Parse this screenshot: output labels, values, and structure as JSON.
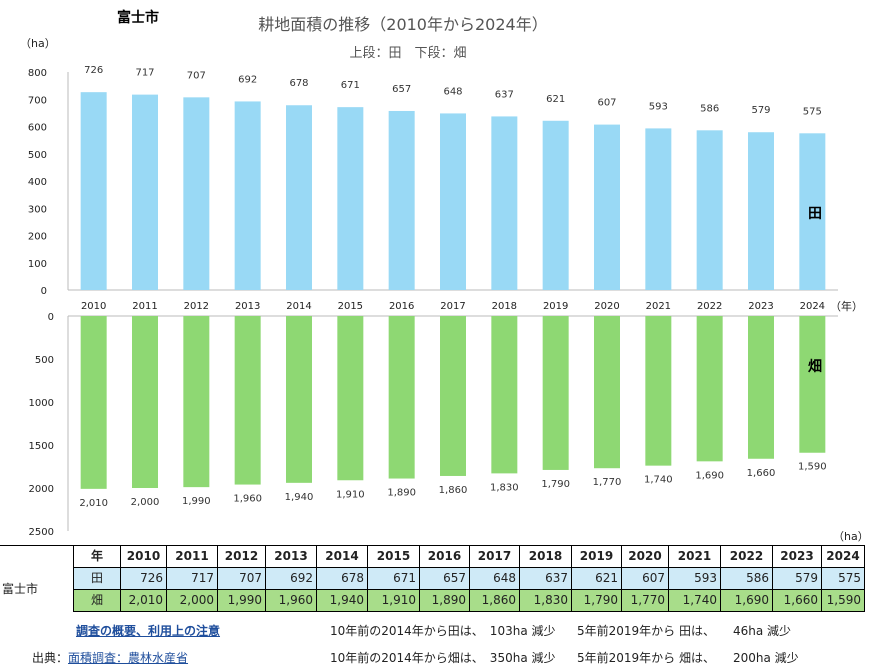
{
  "city": "富士市",
  "chart_data": {
    "type": "bar",
    "title": "耕地面積の推移（2010年から2024年）",
    "subtitle": "上段：田　下段：畑",
    "ylabel_top": "（ha）",
    "unit_bottom": "（ha）",
    "x_unit": "（年）",
    "categories": [
      "2010",
      "2011",
      "2012",
      "2013",
      "2014",
      "2015",
      "2016",
      "2017",
      "2018",
      "2019",
      "2020",
      "2021",
      "2022",
      "2023",
      "2024"
    ],
    "series": [
      {
        "name": "田",
        "color": "#99d9f5",
        "ylim": [
          0,
          800
        ],
        "ticks": [
          0,
          100,
          200,
          300,
          400,
          500,
          600,
          700,
          800
        ],
        "values": [
          726,
          717,
          707,
          692,
          678,
          671,
          657,
          648,
          637,
          621,
          607,
          593,
          586,
          579,
          575
        ],
        "labels": [
          "726",
          "717",
          "707",
          "692",
          "678",
          "671",
          "657",
          "648",
          "637",
          "621",
          "607",
          "593",
          "586",
          "579",
          "575"
        ]
      },
      {
        "name": "畑",
        "color": "#8ed873",
        "ylim": [
          0,
          2500
        ],
        "ticks": [
          0,
          500,
          1000,
          1500,
          2000,
          2500
        ],
        "inverted": true,
        "values": [
          2010,
          2000,
          1990,
          1960,
          1940,
          1910,
          1890,
          1860,
          1830,
          1790,
          1770,
          1740,
          1690,
          1660,
          1590
        ],
        "labels": [
          "2,010",
          "2,000",
          "1,990",
          "1,960",
          "1,940",
          "1,910",
          "1,890",
          "1,860",
          "1,830",
          "1,790",
          "1,770",
          "1,740",
          "1,690",
          "1,660",
          "1,590"
        ]
      }
    ]
  },
  "table": {
    "row_label": "富士市",
    "year_header": "年",
    "paddy_label": "田",
    "field_label": "畑",
    "years": [
      "2010",
      "2011",
      "2012",
      "2013",
      "2014",
      "2015",
      "2016",
      "2017",
      "2018",
      "2019",
      "2020",
      "2021",
      "2022",
      "2023",
      "2024"
    ],
    "paddy": [
      "726",
      "717",
      "707",
      "692",
      "678",
      "671",
      "657",
      "648",
      "637",
      "621",
      "607",
      "593",
      "586",
      "579",
      "575"
    ],
    "field": [
      "2,010",
      "2,000",
      "1,990",
      "1,960",
      "1,940",
      "1,910",
      "1,890",
      "1,860",
      "1,830",
      "1,790",
      "1,770",
      "1,740",
      "1,690",
      "1,660",
      "1,590"
    ]
  },
  "notes": {
    "overview_link": "調査の概要、利用上の注意",
    "source_prefix": "出典：",
    "source_link": "面積調査：農林水産省",
    "paddy_10y": "10年前の2014年から田は、　103ha 減少",
    "paddy_5y": "5年前2019年から 田は、　　46ha 減少",
    "field_10y": "10年前の2014年から畑は、　350ha 減少",
    "field_5y": "5年前2019年から 畑は、　　200ha 減少"
  }
}
